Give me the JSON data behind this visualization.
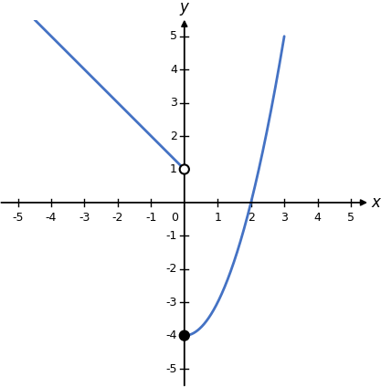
{
  "xlim": [
    -5.5,
    5.5
  ],
  "ylim": [
    -5.5,
    5.5
  ],
  "xticks": [
    -5,
    -4,
    -3,
    -2,
    -1,
    1,
    2,
    3,
    4,
    5
  ],
  "yticks": [
    -5,
    -4,
    -3,
    -2,
    -1,
    1,
    2,
    3,
    4,
    5
  ],
  "xlabel": "x",
  "ylabel": "y",
  "line_color": "#4472c4",
  "line_width": 2.0,
  "open_circle": [
    0,
    1
  ],
  "closed_circle": [
    0,
    -4
  ],
  "background_color": "#ffffff",
  "linear_x_start": -4.5,
  "linear_x_end": 0,
  "linear_slope": -1,
  "linear_intercept": 1,
  "parabola_x_start": 0,
  "parabola_x_end": 3.0,
  "parabola_a": 1,
  "parabola_b": 0,
  "parabola_c": -4,
  "figsize": [
    4.17,
    4.24
  ],
  "dpi": 100
}
